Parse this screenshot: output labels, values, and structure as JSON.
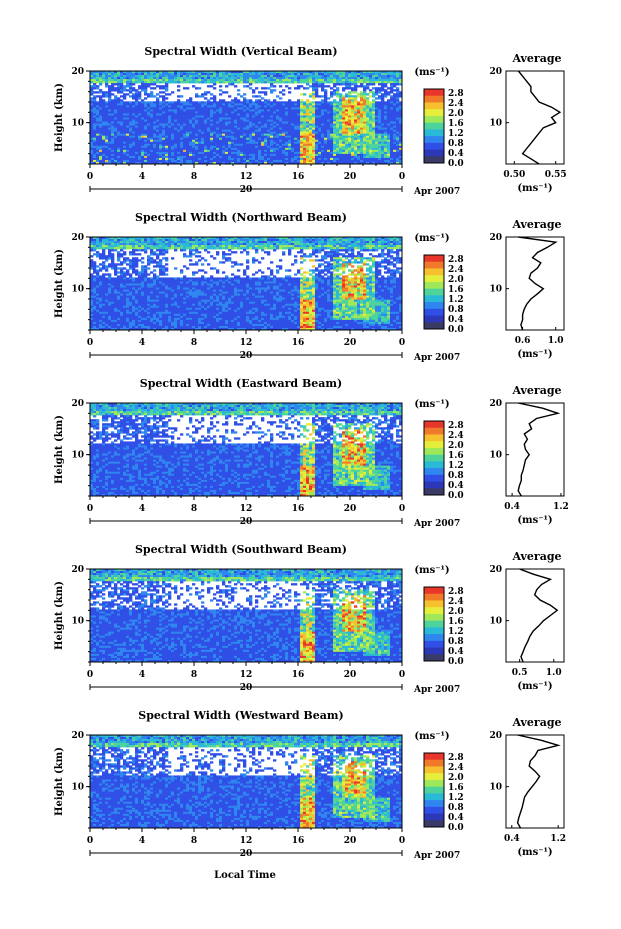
{
  "figure": {
    "xlabel": "Local Time",
    "date_label": "Apr 2007",
    "date_day": "20",
    "x_ticks": [
      "0",
      "4",
      "8",
      "12",
      "16",
      "20",
      "0"
    ],
    "y_label": "Height (km)",
    "y_ticks": [
      "20",
      "10"
    ],
    "colorbar_unit": "(ms⁻¹)",
    "colorbar_ticks": [
      "2.8",
      "2.4",
      "2.0",
      "1.6",
      "1.2",
      "0.8",
      "0.4",
      "0.0"
    ],
    "colorbar_colors": [
      "#e8372a",
      "#f07a2a",
      "#f6c02e",
      "#e6ee3c",
      "#9fe85a",
      "#4ed49a",
      "#2ab9d6",
      "#2f86ef",
      "#2f4fe6",
      "#2c38b8",
      "#3a3a66"
    ],
    "profile_title": "Average",
    "profile_unit": "(ms⁻¹)"
  },
  "chart_data": [
    {
      "type": "heatmap",
      "title": "Spectral Width (Vertical Beam)",
      "xlabel": "Local Time",
      "ylabel": "Height (km)",
      "xlim": [
        0,
        24
      ],
      "ylim": [
        2,
        20
      ],
      "clim": [
        0.0,
        2.8
      ],
      "profile": {
        "title": "Average",
        "xlabel": "(ms⁻¹)",
        "xticks": [
          "0.50",
          "0.55"
        ],
        "xlim": [
          0.49,
          0.56
        ],
        "heights": [
          2,
          3,
          4,
          5,
          6,
          7,
          8,
          9,
          10,
          11,
          12,
          13,
          14,
          15,
          16,
          17,
          18,
          19,
          20
        ],
        "values": [
          0.53,
          0.52,
          0.51,
          0.515,
          0.52,
          0.525,
          0.53,
          0.535,
          0.55,
          0.545,
          0.555,
          0.545,
          0.53,
          0.525,
          0.52,
          0.52,
          0.515,
          0.51,
          0.505
        ]
      }
    },
    {
      "type": "heatmap",
      "title": "Spectral Width (Northward Beam)",
      "xlabel": "Local Time",
      "ylabel": "Height (km)",
      "xlim": [
        0,
        24
      ],
      "ylim": [
        2,
        20
      ],
      "clim": [
        0.0,
        2.8
      ],
      "profile": {
        "title": "Average",
        "xlabel": "(ms⁻¹)",
        "xticks": [
          "0.6",
          "1.0"
        ],
        "xlim": [
          0.4,
          1.1
        ],
        "heights": [
          2,
          3,
          4,
          5,
          6,
          7,
          8,
          9,
          10,
          11,
          12,
          13,
          14,
          15,
          16,
          17,
          18,
          19,
          20
        ],
        "values": [
          0.6,
          0.58,
          0.6,
          0.6,
          0.62,
          0.65,
          0.7,
          0.78,
          0.85,
          0.75,
          0.68,
          0.7,
          0.78,
          0.82,
          0.72,
          0.78,
          0.9,
          1.0,
          0.55
        ]
      }
    },
    {
      "type": "heatmap",
      "title": "Spectral Width (Eastward Beam)",
      "xlabel": "Local Time",
      "ylabel": "Height (km)",
      "xlim": [
        0,
        24
      ],
      "ylim": [
        2,
        20
      ],
      "clim": [
        0.0,
        2.8
      ],
      "profile": {
        "title": "Average",
        "xlabel": "(ms⁻¹)",
        "xticks": [
          "0.4",
          "1.2"
        ],
        "xlim": [
          0.3,
          1.25
        ],
        "heights": [
          2,
          3,
          4,
          5,
          6,
          7,
          8,
          9,
          10,
          11,
          12,
          13,
          14,
          15,
          16,
          17,
          18,
          19,
          20
        ],
        "values": [
          0.55,
          0.5,
          0.52,
          0.55,
          0.55,
          0.58,
          0.6,
          0.62,
          0.68,
          0.62,
          0.6,
          0.65,
          0.6,
          0.72,
          0.68,
          0.8,
          1.15,
          0.9,
          0.5
        ]
      }
    },
    {
      "type": "heatmap",
      "title": "Spectral Width (Southward Beam)",
      "xlabel": "Local Time",
      "ylabel": "Height (km)",
      "xlim": [
        0,
        24
      ],
      "ylim": [
        2,
        20
      ],
      "clim": [
        0.0,
        2.8
      ],
      "profile": {
        "title": "Average",
        "xlabel": "(ms⁻¹)",
        "xticks": [
          "0.5",
          "1.0"
        ],
        "xlim": [
          0.3,
          1.15
        ],
        "heights": [
          2,
          3,
          4,
          5,
          6,
          7,
          8,
          9,
          10,
          11,
          12,
          13,
          14,
          15,
          16,
          17,
          18,
          19,
          20
        ],
        "values": [
          0.55,
          0.52,
          0.55,
          0.58,
          0.62,
          0.65,
          0.7,
          0.78,
          0.85,
          0.95,
          1.05,
          0.95,
          0.8,
          0.72,
          0.75,
          0.82,
          0.95,
          0.7,
          0.5
        ]
      }
    },
    {
      "type": "heatmap",
      "title": "Spectral Width (Westward Beam)",
      "xlabel": "Local Time",
      "ylabel": "Height (km)",
      "xlim": [
        0,
        24
      ],
      "ylim": [
        2,
        20
      ],
      "clim": [
        0.0,
        2.8
      ],
      "profile": {
        "title": "Average",
        "xlabel": "(ms⁻¹)",
        "xticks": [
          "0.4",
          "1.2"
        ],
        "xlim": [
          0.3,
          1.3
        ],
        "heights": [
          2,
          3,
          4,
          5,
          6,
          7,
          8,
          9,
          10,
          11,
          12,
          13,
          14,
          15,
          16,
          17,
          18,
          19,
          20
        ],
        "values": [
          0.55,
          0.5,
          0.52,
          0.55,
          0.58,
          0.6,
          0.62,
          0.68,
          0.75,
          0.82,
          0.88,
          0.8,
          0.7,
          0.72,
          0.8,
          0.85,
          1.2,
          0.9,
          0.5
        ]
      }
    }
  ]
}
